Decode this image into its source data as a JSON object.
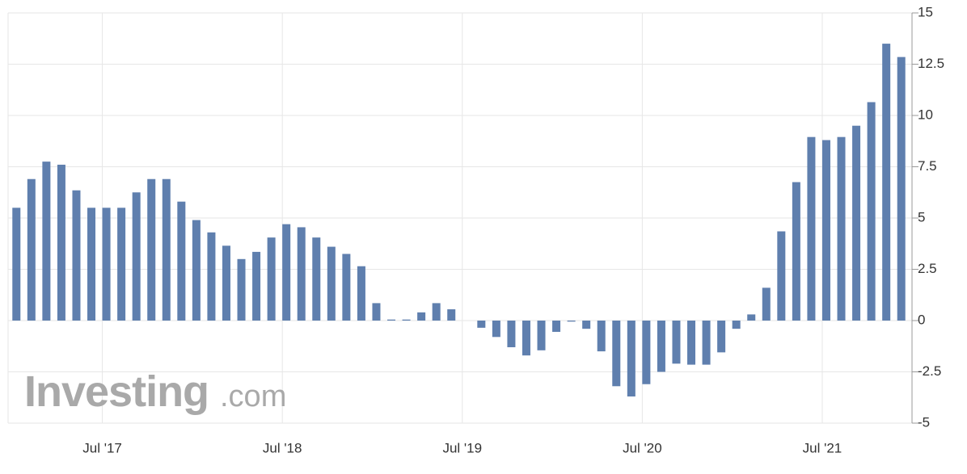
{
  "chart_data": {
    "type": "bar",
    "watermark": {
      "brand": "Investing",
      "suffix": ".com"
    },
    "categories": [
      null,
      null,
      null,
      null,
      null,
      null,
      "Jul '17",
      null,
      null,
      null,
      null,
      null,
      null,
      null,
      null,
      null,
      null,
      null,
      "Jul '18",
      null,
      null,
      null,
      null,
      null,
      null,
      null,
      null,
      null,
      null,
      null,
      "Jul '19",
      null,
      null,
      null,
      null,
      null,
      null,
      null,
      null,
      null,
      null,
      null,
      "Jul '20",
      null,
      null,
      null,
      null,
      null,
      null,
      null,
      null,
      null,
      null,
      null,
      "Jul '21",
      null,
      null,
      null,
      null,
      null
    ],
    "values": [
      5.5,
      6.9,
      7.75,
      7.6,
      6.35,
      5.5,
      5.5,
      5.5,
      6.25,
      6.9,
      6.9,
      5.8,
      4.9,
      4.3,
      3.65,
      3.0,
      3.35,
      4.05,
      4.7,
      4.55,
      4.05,
      3.6,
      3.25,
      2.65,
      0.85,
      0.05,
      0.05,
      0.4,
      0.85,
      0.55,
      0,
      -0.35,
      -0.8,
      -1.3,
      -1.7,
      -1.45,
      -0.55,
      -0.05,
      -0.4,
      -1.5,
      -3.2,
      -3.7,
      -3.1,
      -2.5,
      -2.1,
      -2.15,
      -2.15,
      -1.55,
      -0.4,
      0.3,
      1.6,
      4.35,
      6.75,
      8.95,
      8.8,
      8.95,
      9.5,
      10.65,
      13.5,
      12.85
    ],
    "color": "#5f7fae",
    "ylim": [
      -5,
      15
    ],
    "yticks": [
      15,
      12.5,
      10,
      7.5,
      5,
      2.5,
      0,
      -2.5,
      -5
    ],
    "grid": true
  }
}
